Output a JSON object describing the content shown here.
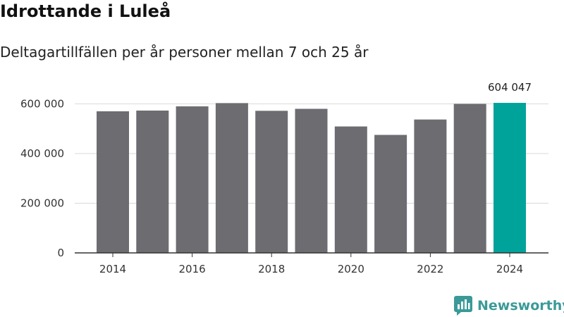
{
  "header": {
    "title": "Idrottande i Luleå",
    "subtitle": "Deltagartillfällen per år personer mellan 7 och 25 år"
  },
  "brand": {
    "name": "Newsworthy"
  },
  "colors": {
    "bar": "#6d6c71",
    "highlight": "#00a39a",
    "grid": "#d9d9d9",
    "brand": "#3b9a98"
  },
  "chart_data": {
    "type": "bar",
    "title": "Idrottande i Luleå",
    "subtitle": "Deltagartillfällen per år personer mellan 7 och 25 år",
    "categories": [
      "2014",
      "2015",
      "2016",
      "2017",
      "2018",
      "2019",
      "2020",
      "2021",
      "2022",
      "2023",
      "2024"
    ],
    "values": [
      570000,
      573000,
      590000,
      603000,
      572000,
      580000,
      509000,
      475000,
      537000,
      600000,
      604047
    ],
    "highlight_index": 10,
    "data_labels": [
      {
        "index": 10,
        "text": "604 047"
      }
    ],
    "x_tick_labels": [
      "2014",
      "2016",
      "2018",
      "2020",
      "2022",
      "2024"
    ],
    "y_ticks": [
      0,
      200000,
      400000,
      600000
    ],
    "y_tick_labels": [
      "0",
      "200 000",
      "400 000",
      "600 000"
    ],
    "ylim": [
      0,
      604047
    ],
    "xlabel": "",
    "ylabel": "",
    "grid": true
  }
}
